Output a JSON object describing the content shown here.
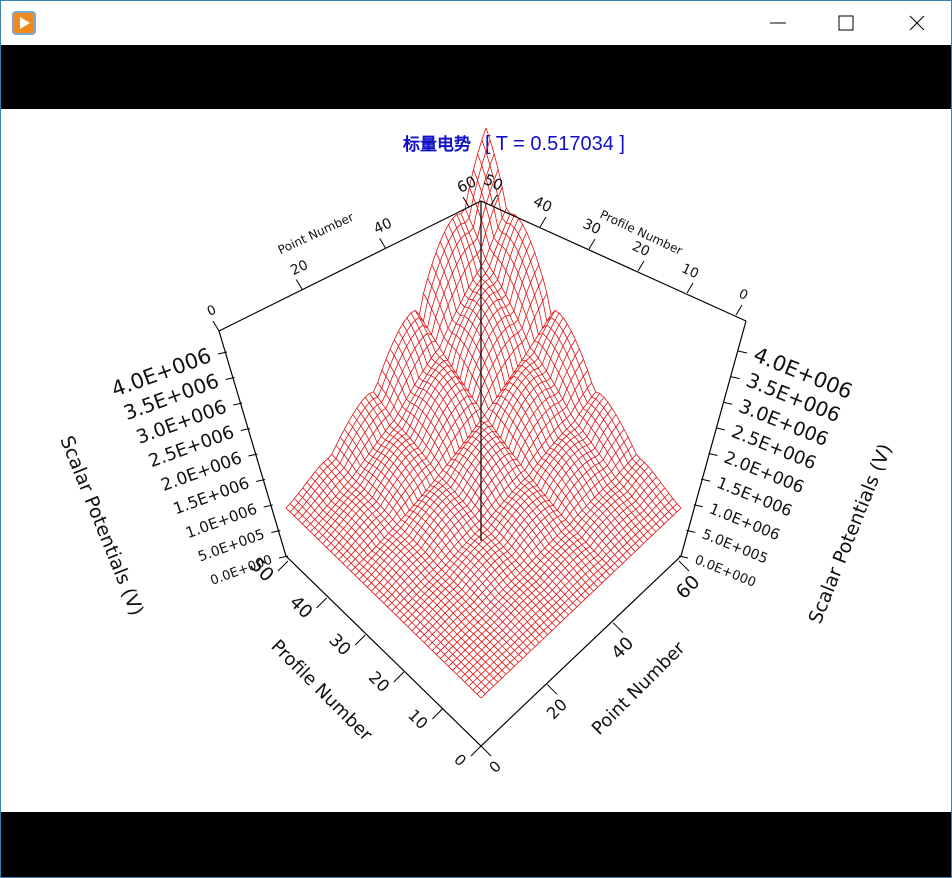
{
  "plot": {
    "title": "标量电势",
    "subtitle": "[ T = 0.517034 ]",
    "axes": {
      "z_left": {
        "label": "Scalar Potentials (V)",
        "ticks": [
          "0.0E+000",
          "5.0E+005",
          "1.0E+006",
          "1.5E+006",
          "2.0E+006",
          "2.5E+006",
          "3.0E+006",
          "3.5E+006",
          "4.0E+006"
        ]
      },
      "z_right": {
        "label": "Scalar Potentials (V)",
        "ticks": [
          "0.0E+000",
          "5.0E+005",
          "1.0E+006",
          "1.5E+006",
          "2.0E+006",
          "2.5E+006",
          "3.0E+006",
          "3.5E+006",
          "4.0E+006"
        ]
      },
      "front_profile": {
        "label": "Profile Number",
        "ticks": [
          0,
          10,
          20,
          30,
          40,
          50
        ]
      },
      "front_point": {
        "label": "Point Number",
        "ticks": [
          0,
          20,
          40,
          60
        ]
      },
      "back_point": {
        "label": "Point Number",
        "ticks": [
          0,
          20,
          40,
          60
        ]
      },
      "back_profile": {
        "label": "Profile Number",
        "ticks": [
          0,
          10,
          20,
          30,
          40,
          50
        ]
      }
    }
  }
}
